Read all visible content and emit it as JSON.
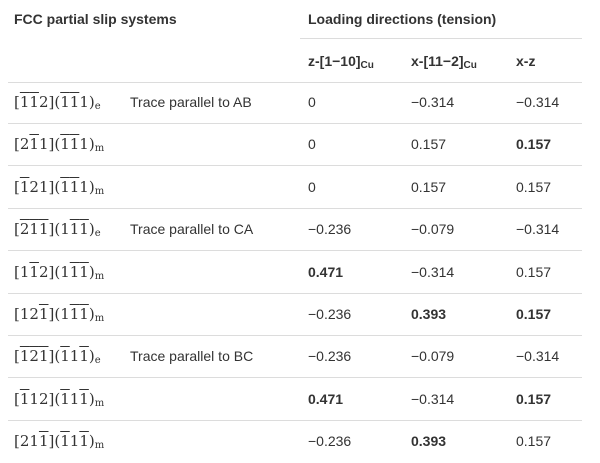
{
  "header": {
    "col_left": "FCC partial slip systems",
    "col_right": "Loading directions (tension)",
    "loads": [
      {
        "main": "z-[1−10]",
        "sub": "Cu"
      },
      {
        "main": "x-[11−2]",
        "sub": "Cu"
      },
      {
        "main": "x-z",
        "sub": ""
      }
    ]
  },
  "rows": [
    {
      "dir": [
        {
          "t": "[",
          "o": false
        },
        {
          "t": "1",
          "o": true
        },
        {
          "t": "1",
          "o": true
        },
        {
          "t": "2",
          "o": false
        },
        {
          "t": "](",
          "o": false
        },
        {
          "t": "1",
          "o": true
        },
        {
          "t": "1",
          "o": true
        },
        {
          "t": "1",
          "o": false
        },
        {
          "t": ")",
          "o": false
        }
      ],
      "sub": "e",
      "trace": "Trace parallel to AB",
      "values": [
        {
          "v": "0",
          "b": false
        },
        {
          "v": "−0.314",
          "b": false
        },
        {
          "v": "−0.314",
          "b": false
        }
      ]
    },
    {
      "dir": [
        {
          "t": "[2",
          "o": false
        },
        {
          "t": "1",
          "o": true
        },
        {
          "t": "1](",
          "o": false
        },
        {
          "t": "1",
          "o": true
        },
        {
          "t": "1",
          "o": true
        },
        {
          "t": "1",
          "o": false
        },
        {
          "t": ")",
          "o": false
        }
      ],
      "sub": "m",
      "trace": "",
      "values": [
        {
          "v": "0",
          "b": false
        },
        {
          "v": "0.157",
          "b": false
        },
        {
          "v": "0.157",
          "b": true
        }
      ]
    },
    {
      "dir": [
        {
          "t": "[",
          "o": false
        },
        {
          "t": "1",
          "o": true
        },
        {
          "t": "21](",
          "o": false
        },
        {
          "t": "1",
          "o": true
        },
        {
          "t": "1",
          "o": true
        },
        {
          "t": "1",
          "o": false
        },
        {
          "t": ")",
          "o": false
        }
      ],
      "sub": "m",
      "trace": "",
      "values": [
        {
          "v": "0",
          "b": false
        },
        {
          "v": "0.157",
          "b": false
        },
        {
          "v": "0.157",
          "b": false
        }
      ]
    },
    {
      "dir": [
        {
          "t": "[",
          "o": false
        },
        {
          "t": "2",
          "o": true
        },
        {
          "t": "1",
          "o": true
        },
        {
          "t": "1",
          "o": true
        },
        {
          "t": "](1",
          "o": false
        },
        {
          "t": "1",
          "o": true
        },
        {
          "t": "1",
          "o": true
        },
        {
          "t": ")",
          "o": false
        }
      ],
      "sub": "e",
      "trace": "Trace parallel to CA",
      "values": [
        {
          "v": "−0.236",
          "b": false
        },
        {
          "v": "−0.079",
          "b": false
        },
        {
          "v": "−0.314",
          "b": false
        }
      ]
    },
    {
      "dir": [
        {
          "t": "[1",
          "o": false
        },
        {
          "t": "1",
          "o": true
        },
        {
          "t": "2](1",
          "o": false
        },
        {
          "t": "1",
          "o": true
        },
        {
          "t": "1",
          "o": true
        },
        {
          "t": ")",
          "o": false
        }
      ],
      "sub": "m",
      "trace": "",
      "values": [
        {
          "v": "0.471",
          "b": true
        },
        {
          "v": "−0.314",
          "b": false
        },
        {
          "v": "0.157",
          "b": false
        }
      ]
    },
    {
      "dir": [
        {
          "t": "[12",
          "o": false
        },
        {
          "t": "1",
          "o": true
        },
        {
          "t": "](1",
          "o": false
        },
        {
          "t": "1",
          "o": true
        },
        {
          "t": "1",
          "o": true
        },
        {
          "t": ")",
          "o": false
        }
      ],
      "sub": "m",
      "trace": "",
      "values": [
        {
          "v": "−0.236",
          "b": false
        },
        {
          "v": "0.393",
          "b": true
        },
        {
          "v": "0.157",
          "b": true
        }
      ]
    },
    {
      "dir": [
        {
          "t": "[",
          "o": false
        },
        {
          "t": "1",
          "o": true
        },
        {
          "t": "2",
          "o": true
        },
        {
          "t": "1",
          "o": true
        },
        {
          "t": "](",
          "o": false
        },
        {
          "t": "1",
          "o": true
        },
        {
          "t": "1",
          "o": false
        },
        {
          "t": "1",
          "o": true
        },
        {
          "t": ")",
          "o": false
        }
      ],
      "sub": "e",
      "trace": "Trace parallel to BC",
      "values": [
        {
          "v": "−0.236",
          "b": false
        },
        {
          "v": "−0.079",
          "b": false
        },
        {
          "v": "−0.314",
          "b": false
        }
      ]
    },
    {
      "dir": [
        {
          "t": "[",
          "o": false
        },
        {
          "t": "1",
          "o": true
        },
        {
          "t": "12](",
          "o": false
        },
        {
          "t": "1",
          "o": true
        },
        {
          "t": "1",
          "o": false
        },
        {
          "t": "1",
          "o": true
        },
        {
          "t": ")",
          "o": false
        }
      ],
      "sub": "m",
      "trace": "",
      "values": [
        {
          "v": "0.471",
          "b": true
        },
        {
          "v": "−0.314",
          "b": false
        },
        {
          "v": "0.157",
          "b": true
        }
      ]
    },
    {
      "dir": [
        {
          "t": "[21",
          "o": false
        },
        {
          "t": "1",
          "o": true
        },
        {
          "t": "](",
          "o": false
        },
        {
          "t": "1",
          "o": true
        },
        {
          "t": "1",
          "o": false
        },
        {
          "t": "1",
          "o": true
        },
        {
          "t": ")",
          "o": false
        }
      ],
      "sub": "m",
      "trace": "",
      "values": [
        {
          "v": "−0.236",
          "b": false
        },
        {
          "v": "0.393",
          "b": true
        },
        {
          "v": "0.157",
          "b": false
        }
      ]
    }
  ]
}
